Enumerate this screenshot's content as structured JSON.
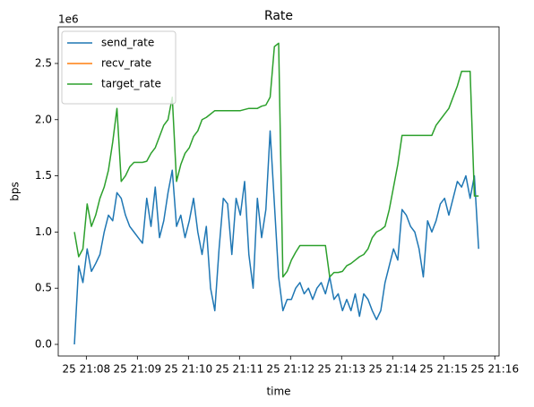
{
  "chart_data": {
    "type": "line",
    "title": "Rate",
    "xlabel": "time",
    "ylabel": "bps",
    "y_offset_label": "1e6",
    "legend": "upper left",
    "grid": false,
    "x": [
      "21:07:46",
      "21:07:51",
      "21:07:56",
      "21:08:01",
      "21:08:06",
      "21:08:11",
      "21:08:16",
      "21:08:21",
      "21:08:26",
      "21:08:31",
      "21:08:36",
      "21:08:41",
      "21:08:46",
      "21:08:51",
      "21:08:56",
      "21:09:01",
      "21:09:06",
      "21:09:11",
      "21:09:16",
      "21:09:21",
      "21:09:26",
      "21:09:31",
      "21:09:36",
      "21:09:41",
      "21:09:46",
      "21:09:51",
      "21:09:56",
      "21:10:01",
      "21:10:06",
      "21:10:11",
      "21:10:16",
      "21:10:21",
      "21:10:26",
      "21:10:31",
      "21:10:36",
      "21:10:41",
      "21:10:46",
      "21:10:51",
      "21:10:56",
      "21:11:01",
      "21:11:06",
      "21:11:11",
      "21:11:16",
      "21:11:21",
      "21:11:26",
      "21:11:31",
      "21:11:36",
      "21:11:41",
      "21:11:46",
      "21:11:51",
      "21:11:56",
      "21:12:01",
      "21:12:06",
      "21:12:11",
      "21:12:16",
      "21:12:21",
      "21:12:26",
      "21:12:31",
      "21:12:36",
      "21:12:41",
      "21:12:46",
      "21:12:51",
      "21:12:56",
      "21:13:01",
      "21:13:06",
      "21:13:11",
      "21:13:16",
      "21:13:21",
      "21:13:26",
      "21:13:31",
      "21:13:36",
      "21:13:41",
      "21:13:46",
      "21:13:51",
      "21:13:56",
      "21:14:01",
      "21:14:06",
      "21:14:11",
      "21:14:16",
      "21:14:21",
      "21:14:26",
      "21:14:31",
      "21:14:36",
      "21:14:41",
      "21:14:46",
      "21:14:51",
      "21:14:56",
      "21:15:01",
      "21:15:06",
      "21:15:11",
      "21:15:16",
      "21:15:21",
      "21:15:26",
      "21:15:31",
      "21:15:36",
      "21:15:41"
    ],
    "series": [
      {
        "name": "send_rate",
        "color": "#1f77b4",
        "values": [
          0,
          700000,
          550000,
          850000,
          650000,
          720000,
          800000,
          1000000,
          1150000,
          1100000,
          1350000,
          1300000,
          1150000,
          1050000,
          1000000,
          950000,
          900000,
          1300000,
          1050000,
          1400000,
          950000,
          1100000,
          1350000,
          1550000,
          1050000,
          1150000,
          950000,
          1100000,
          1300000,
          1000000,
          800000,
          1050000,
          500000,
          300000,
          850000,
          1300000,
          1250000,
          800000,
          1300000,
          1150000,
          1450000,
          800000,
          500000,
          1300000,
          950000,
          1200000,
          1900000,
          1250000,
          600000,
          300000,
          400000,
          400000,
          500000,
          550000,
          450000,
          500000,
          400000,
          500000,
          550000,
          450000,
          600000,
          400000,
          450000,
          300000,
          400000,
          300000,
          450000,
          250000,
          450000,
          400000,
          300000,
          220000,
          300000,
          550000,
          700000,
          850000,
          750000,
          1200000,
          1150000,
          1050000,
          1000000,
          850000,
          600000,
          1100000,
          1000000,
          1100000,
          1250000,
          1300000,
          1150000,
          1300000,
          1450000,
          1400000,
          1500000,
          1300000,
          1500000,
          850000
        ]
      },
      {
        "name": "recv_rate",
        "color": "#ff7f0e",
        "values": [
          null,
          null,
          null,
          null,
          null,
          null,
          null,
          null,
          null,
          null,
          null,
          null,
          null,
          null,
          null,
          null,
          null,
          null,
          null,
          null,
          null,
          null,
          null,
          null,
          null,
          null,
          null,
          null,
          null,
          null,
          null,
          null,
          null,
          null,
          null,
          null,
          null,
          null,
          null,
          null,
          null,
          null,
          null,
          null,
          null,
          null,
          null,
          null,
          null,
          null,
          null,
          null,
          null,
          null,
          null,
          null,
          null,
          null,
          null,
          null,
          null,
          null,
          null,
          null,
          null,
          null,
          null,
          null,
          null,
          null,
          null,
          null,
          null,
          null,
          null,
          null,
          null,
          null,
          null,
          null,
          null,
          null,
          null,
          null,
          null,
          null,
          null,
          null,
          null,
          null,
          null,
          null,
          null,
          null,
          null,
          null
        ]
      },
      {
        "name": "target_rate",
        "color": "#2ca02c",
        "values": [
          1000000,
          780000,
          850000,
          1250000,
          1050000,
          1150000,
          1300000,
          1400000,
          1550000,
          1800000,
          2100000,
          1450000,
          1500000,
          1580000,
          1620000,
          1620000,
          1620000,
          1630000,
          1700000,
          1750000,
          1850000,
          1950000,
          2000000,
          2200000,
          1450000,
          1600000,
          1700000,
          1750000,
          1850000,
          1900000,
          2000000,
          2020000,
          2050000,
          2080000,
          2080000,
          2080000,
          2080000,
          2080000,
          2080000,
          2080000,
          2090000,
          2100000,
          2100000,
          2100000,
          2120000,
          2130000,
          2200000,
          2650000,
          2680000,
          600000,
          650000,
          750000,
          820000,
          880000,
          880000,
          880000,
          880000,
          880000,
          880000,
          880000,
          600000,
          640000,
          640000,
          650000,
          700000,
          720000,
          750000,
          780000,
          800000,
          850000,
          950000,
          1000000,
          1020000,
          1050000,
          1200000,
          1400000,
          1600000,
          1860000,
          1860000,
          1860000,
          1860000,
          1860000,
          1860000,
          1860000,
          1860000,
          1950000,
          2000000,
          2050000,
          2100000,
          2200000,
          2300000,
          2430000,
          2430000,
          2430000,
          1320000,
          1320000
        ]
      }
    ],
    "xlim": [
      "21:07:27",
      "21:16:05"
    ],
    "xticks": [
      {
        "value": "21:08:00",
        "label": "25 21:08"
      },
      {
        "value": "21:09:00",
        "label": "25 21:09"
      },
      {
        "value": "21:10:00",
        "label": "25 21:10"
      },
      {
        "value": "21:11:00",
        "label": "25 21:11"
      },
      {
        "value": "21:12:00",
        "label": "25 21:12"
      },
      {
        "value": "21:13:00",
        "label": "25 21:13"
      },
      {
        "value": "21:14:00",
        "label": "25 21:14"
      },
      {
        "value": "21:15:00",
        "label": "25 21:15"
      },
      {
        "value": "21:16:00",
        "label": "25 21:16"
      }
    ],
    "ylim": [
      -103500,
      2826000
    ],
    "yticks": [
      {
        "value": 0,
        "label": "0.0"
      },
      {
        "value": 500000,
        "label": "0.5"
      },
      {
        "value": 1000000,
        "label": "1.0"
      },
      {
        "value": 1500000,
        "label": "1.5"
      },
      {
        "value": 2000000,
        "label": "2.0"
      },
      {
        "value": 2500000,
        "label": "2.5"
      }
    ]
  }
}
